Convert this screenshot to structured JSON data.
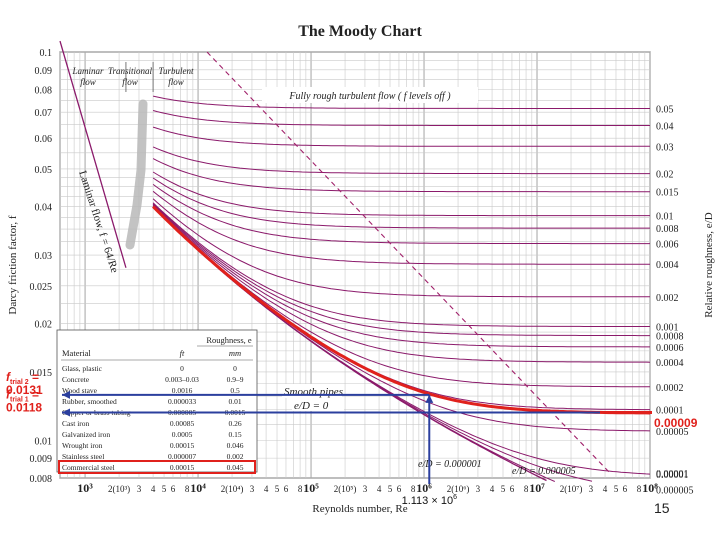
{
  "chart_data": {
    "type": "line",
    "title": "The Moody Chart",
    "xlabel": "Reynolds number, Re",
    "ylabel": "Darcy friction factor, f",
    "ylabel_right": "Relative roughness, e/D",
    "x_scale": "log",
    "y_scale": "log",
    "xlim": [
      600,
      100000000
    ],
    "ylim": [
      0.008,
      0.1
    ],
    "grid": true,
    "y_ticks": [
      "0.1",
      "0.09",
      "0.08",
      "0.07",
      "0.06",
      "0.05",
      "0.04",
      "0.03",
      "0.025",
      "0.02",
      "0.015",
      "0.01",
      "0.009",
      "0.008"
    ],
    "y_tick_values": [
      0.1,
      0.09,
      0.08,
      0.07,
      0.06,
      0.05,
      0.04,
      0.03,
      0.025,
      0.02,
      0.015,
      0.01,
      0.009,
      0.008
    ],
    "x_ticks": [
      "10³",
      "2(10³)",
      "3",
      "4",
      "5",
      "6",
      "8",
      "10⁴",
      "2(10⁴)",
      "3",
      "4",
      "5",
      "6",
      "8",
      "10⁵",
      "2(10⁵)",
      "3",
      "4",
      "5",
      "6",
      "8",
      "10⁶",
      "2(10⁶)",
      "3",
      "4",
      "5",
      "6",
      "8",
      "10⁷",
      "2(10⁷)",
      "3",
      "4",
      "5",
      "6",
      "8",
      "10⁸"
    ],
    "x_tick_values": [
      1000,
      2000,
      3000,
      4000,
      5000,
      6000,
      8000,
      10000,
      20000,
      30000,
      40000,
      50000,
      60000,
      80000,
      100000,
      200000,
      300000,
      400000,
      500000,
      600000,
      800000,
      1000000,
      2000000,
      3000000,
      4000000,
      5000000,
      6000000,
      8000000,
      10000000,
      20000000,
      30000000,
      40000000,
      50000000,
      60000000,
      80000000,
      100000000
    ],
    "roughness_curves": [
      0.05,
      0.04,
      0.03,
      0.02,
      0.015,
      0.01,
      0.008,
      0.006,
      0.004,
      0.002,
      0.001,
      0.0008,
      0.0006,
      0.0004,
      0.0002,
      0.0001,
      5e-05,
      1e-05,
      5e-06,
      1e-06
    ],
    "roughness_labels": [
      "0.05",
      "0.04",
      "0.03",
      "0.02",
      "0.015",
      "0.01",
      "0.008",
      "0.006",
      "0.004",
      "0.002",
      "0.001",
      "0.0008",
      "0.0006",
      "0.0004",
      "0.0002",
      "0.0001",
      "0.00005",
      "0.00001",
      "0.000005"
    ],
    "roughness_label_extra": "0.00001",
    "region_labels": {
      "laminar": [
        "Laminar",
        "flow"
      ],
      "transitional": [
        "Transitional",
        "flow"
      ],
      "turbulent": [
        "Turbulent",
        "flow"
      ],
      "fully_rough": "Fully rough turbulent flow ( f levels off )",
      "laminar_eq": "Laminar flow, f = 64/Re",
      "smooth": "Smooth pipes",
      "ed0": "e/D = 0",
      "ed5e6": "e/D = 0.000005",
      "ed1e6": "e/D = 0.000001"
    },
    "annotations": {
      "f_trial2_label": "f",
      "f_trial2_sub": "trial 2",
      "f_trial2_eq": " =",
      "f_trial2_value": "0.0131",
      "f_trial2_number": 0.0131,
      "f_trial1_label": "f",
      "f_trial1_sub": "trial 1",
      "f_trial1_eq": " =",
      "f_trial1_value": "0.0118",
      "f_trial1_number": 0.0118,
      "re_label": "1.113 × 10",
      "re_sup": "6",
      "re_value": 1113000,
      "ed_highlight": "0.00009",
      "ed_highlight_value": 9e-05
    },
    "roughness_table": {
      "title": "Roughness, e",
      "columns": [
        "Material",
        "ft",
        "mm"
      ],
      "rows": [
        [
          "Glass, plastic",
          "0",
          "0"
        ],
        [
          "Concrete",
          "0.003–0.03",
          "0.9–9"
        ],
        [
          "Wood stave",
          "0.0016",
          "0.5"
        ],
        [
          "Rubber, smoothed",
          "0.000033",
          "0.01"
        ],
        [
          "Copper or brass tubing",
          "0.000005",
          "0.0015"
        ],
        [
          "Cast iron",
          "0.00085",
          "0.26"
        ],
        [
          "Galvanized iron",
          "0.0005",
          "0.15"
        ],
        [
          "Wrought iron",
          "0.00015",
          "0.046"
        ],
        [
          "Stainless steel",
          "0.000007",
          "0.002"
        ],
        [
          "Commercial steel",
          "0.00015",
          "0.045"
        ]
      ],
      "highlighted_row": "Commercial steel"
    },
    "colors": {
      "curve": "#8b1a6b",
      "grid": "#c9c9c9",
      "highlight": "#e0211c",
      "pointer": "#2b3f9e",
      "dashed": "#a0206a"
    }
  },
  "slide": {
    "page_number": "15"
  }
}
